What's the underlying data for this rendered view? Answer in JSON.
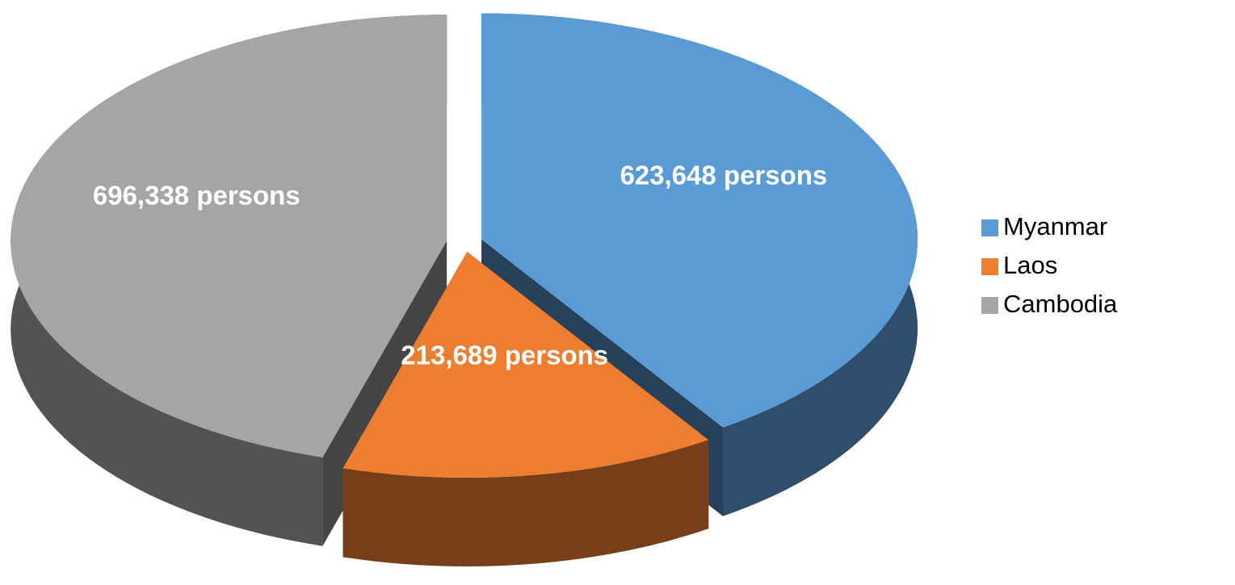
{
  "chart_data": {
    "type": "pie",
    "categories": [
      "Myanmar",
      "Laos",
      "Cambodia"
    ],
    "values": [
      623648,
      213689,
      696338
    ],
    "value_labels": [
      "623,648 persons",
      "213,689 persons",
      "696,338 persons"
    ],
    "colors": [
      "#5b9bd5",
      "#ed7d31",
      "#a5a5a5"
    ],
    "legend": "right"
  }
}
